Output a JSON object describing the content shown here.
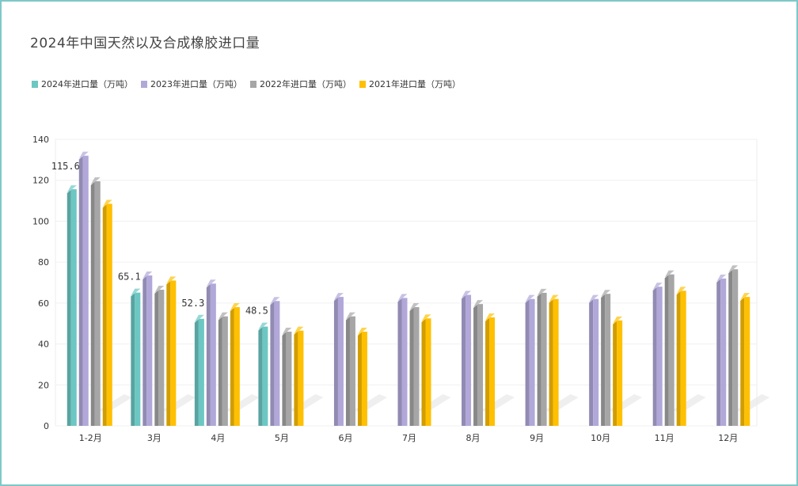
{
  "chart_data": {
    "type": "bar",
    "title": "2024年中国天然以及合成橡胶进口量",
    "xlabel": "",
    "ylabel": "",
    "categories": [
      "1-2月",
      "3月",
      "4月",
      "5月",
      "6月",
      "7月",
      "8月",
      "9月",
      "10月",
      "11月",
      "12月"
    ],
    "ylim": [
      0,
      140
    ],
    "yticks": [
      "0",
      "20",
      "40",
      "60",
      "80",
      "100",
      "120",
      "140"
    ],
    "legend_position": "top-left",
    "series": [
      {
        "name": "2024年进口量（万吨）",
        "color": "#6cc7c3",
        "values": [
          115.6,
          65.1,
          52.3,
          48.5,
          null,
          null,
          null,
          null,
          null,
          null,
          null
        ],
        "labels": [
          "115.6",
          "65.1",
          "52.3",
          "48.5"
        ]
      },
      {
        "name": "2023年进口量（万吨）",
        "color": "#b1a8d9",
        "values": [
          132,
          73.5,
          69.5,
          61,
          63,
          62.5,
          64,
          62,
          62,
          68,
          72
        ]
      },
      {
        "name": "2022年进口量（万吨）",
        "color": "#a6a6a6",
        "values": [
          119.5,
          66.5,
          53.5,
          46,
          53.5,
          58,
          59.5,
          65,
          64.5,
          74,
          76.5
        ]
      },
      {
        "name": "2021年进口量（万吨）",
        "color": "#ffc000",
        "values": [
          108.5,
          71,
          58,
          46.5,
          46,
          52.5,
          53,
          62,
          51.5,
          66,
          63
        ]
      }
    ]
  }
}
